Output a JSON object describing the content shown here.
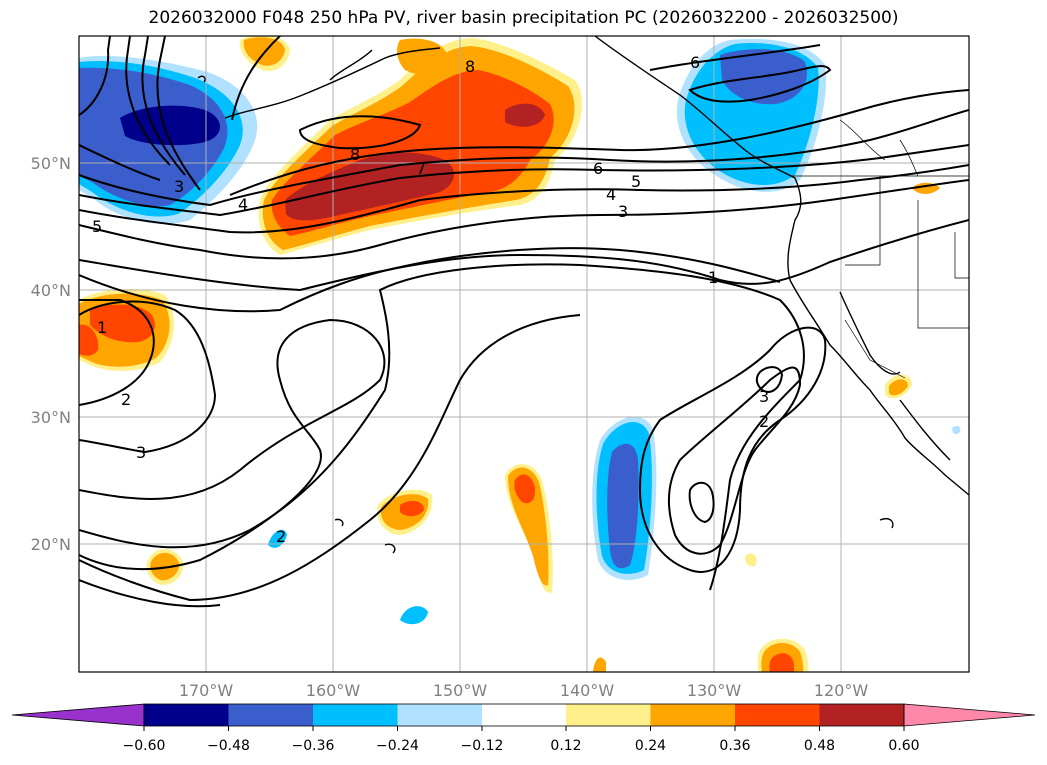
{
  "title": "2026032000 F048 250 hPa PV, river basin precipitation PC (2026032200 - 2026032500)",
  "lat_labels": [
    "50°N",
    "40°N",
    "30°N",
    "20°N"
  ],
  "lon_labels": [
    "170°W",
    "160°W",
    "150°W",
    "140°W",
    "130°W",
    "120°W"
  ],
  "contour_labels": [
    "1",
    "1",
    "2",
    "2",
    "2",
    "3",
    "3",
    "3",
    "3",
    "4",
    "4",
    "5",
    "5",
    "6",
    "6",
    "7",
    "8",
    "8"
  ],
  "colorbar": {
    "ticks": [
      "−0.60",
      "−0.48",
      "−0.36",
      "−0.24",
      "−0.12",
      "0.12",
      "0.24",
      "0.36",
      "0.48",
      "0.60"
    ],
    "colors": [
      "#9932cc",
      "#00008b",
      "#3a5fcd",
      "#00bfff",
      "#b0e2ff",
      "#ffffff",
      "#fff08b",
      "#ffa500",
      "#ff4500",
      "#b22222",
      "#ff88aa"
    ]
  },
  "fill_colors": {
    "neg1": "#b0e2ff",
    "neg2": "#00bfff",
    "neg3": "#3a5fcd",
    "neg4": "#00008b",
    "pos1": "#fff08b",
    "pos2": "#ffa500",
    "pos3": "#ff4500",
    "pos4": "#b22222"
  }
}
